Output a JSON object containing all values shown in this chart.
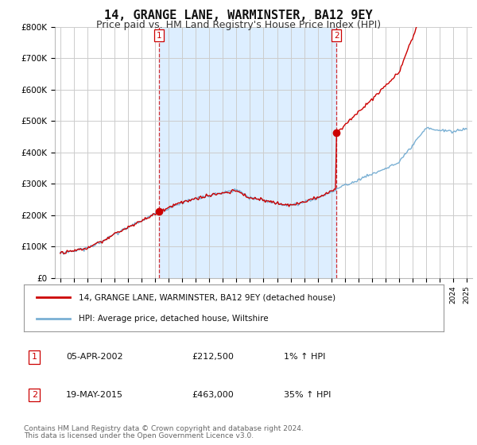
{
  "title": "14, GRANGE LANE, WARMINSTER, BA12 9EY",
  "subtitle": "Price paid vs. HM Land Registry's House Price Index (HPI)",
  "ylim": [
    0,
    800000
  ],
  "yticks": [
    0,
    100000,
    200000,
    300000,
    400000,
    500000,
    600000,
    700000,
    800000
  ],
  "ytick_labels": [
    "£0",
    "£100K",
    "£200K",
    "£300K",
    "£400K",
    "£500K",
    "£600K",
    "£700K",
    "£800K"
  ],
  "line_color_red": "#cc0000",
  "line_color_blue": "#7ab0d4",
  "vline_color": "#cc0000",
  "fill_color": "#ddeeff",
  "marker1_x": 2002.27,
  "marker1_y": 212500,
  "marker2_x": 2015.38,
  "marker2_y": 463000,
  "xlim_left": 1994.6,
  "xlim_right": 2025.4,
  "legend_entries": [
    "14, GRANGE LANE, WARMINSTER, BA12 9EY (detached house)",
    "HPI: Average price, detached house, Wiltshire"
  ],
  "table_rows": [
    [
      "1",
      "05-APR-2002",
      "£212,500",
      "1% ↑ HPI"
    ],
    [
      "2",
      "19-MAY-2015",
      "£463,000",
      "35% ↑ HPI"
    ]
  ],
  "footnote1": "Contains HM Land Registry data © Crown copyright and database right 2024.",
  "footnote2": "This data is licensed under the Open Government Licence v3.0.",
  "background_color": "#ffffff",
  "plot_bg_color": "#ffffff",
  "grid_color": "#cccccc",
  "title_fontsize": 11,
  "subtitle_fontsize": 9
}
